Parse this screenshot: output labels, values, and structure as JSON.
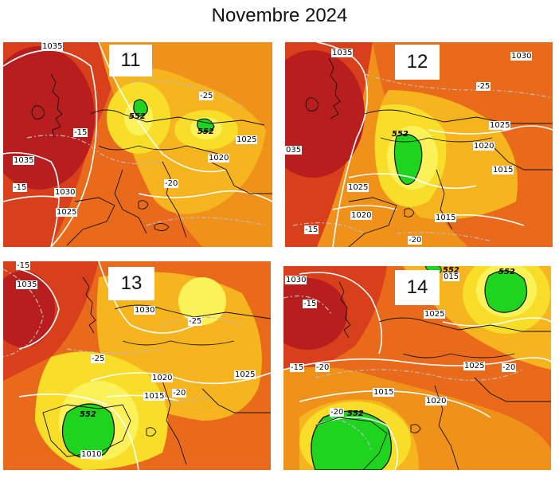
{
  "title": "Novembre 2024",
  "panels": [
    {
      "day": "11",
      "isobars": [
        "1035",
        "1035",
        "1030",
        "1025",
        "1020",
        "1025"
      ],
      "temps": [
        "-15",
        "-15",
        "-25",
        "-20"
      ],
      "heights": [
        "552",
        "552"
      ]
    },
    {
      "day": "12",
      "isobars": [
        "1035",
        "1030",
        "1025",
        "1020",
        "1015",
        "1025",
        "1020",
        "1015",
        "035"
      ],
      "temps": [
        "-25",
        "-15",
        "-20"
      ],
      "heights": [
        "552"
      ]
    },
    {
      "day": "13",
      "isobars": [
        "1035",
        "1030",
        "1020",
        "1015",
        "1025",
        "1010"
      ],
      "temps": [
        "-15",
        "-25",
        "-25",
        "-20"
      ],
      "heights": [
        "552"
      ]
    },
    {
      "day": "14",
      "isobars": [
        "1030",
        "1025",
        "1025",
        "1015",
        "1020",
        "015"
      ],
      "temps": [
        "-15",
        "-15",
        "-20",
        "-20",
        "-20"
      ],
      "heights": [
        "552",
        "552",
        "552"
      ]
    }
  ],
  "colors": {
    "deep_red": "#b81e1e",
    "red": "#d8401c",
    "orange_red": "#e86a1a",
    "orange": "#f0921a",
    "amber": "#f6b41e",
    "yellow": "#f8de28",
    "pale_yellow": "#fbf25a",
    "green": "#1ed41e",
    "coast": "#111111",
    "isobar": "#ffffff",
    "isotherm": "#bcbcbc"
  }
}
